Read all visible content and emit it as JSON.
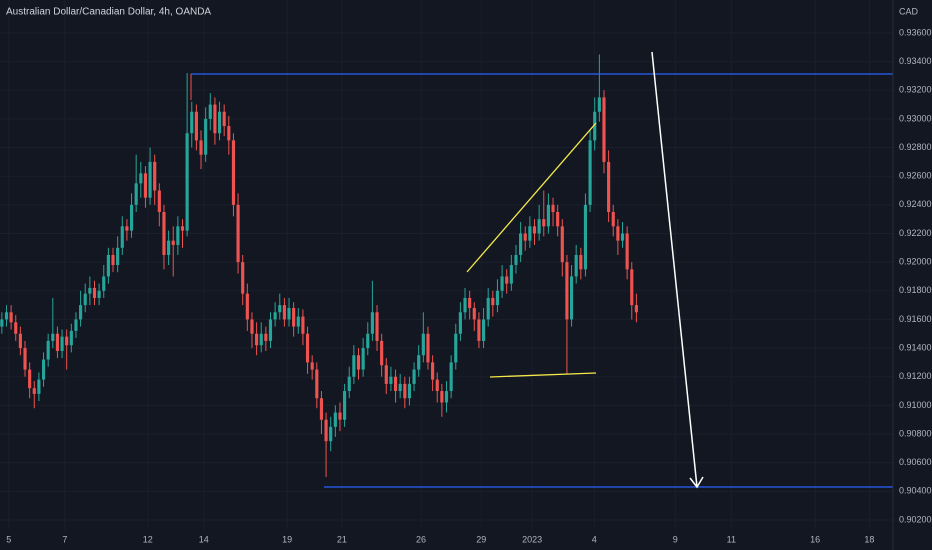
{
  "chart_data": {
    "type": "candlestick",
    "title": "Australian Dollar/Canadian Dollar, 4h, OANDA",
    "y_axis_label": "CAD",
    "up_color": "#26a69a",
    "down_color": "#ef5350",
    "grid": true,
    "grid_color": "#1b1f2b",
    "ylim": [
      0.9013,
      0.9383
    ],
    "yticks": [
      {
        "value": 0.902,
        "label": "0.90200"
      },
      {
        "value": 0.904,
        "label": "0.90400"
      },
      {
        "value": 0.906,
        "label": "0.90600"
      },
      {
        "value": 0.908,
        "label": "0.90800"
      },
      {
        "value": 0.91,
        "label": "0.91000"
      },
      {
        "value": 0.912,
        "label": "0.91200"
      },
      {
        "value": 0.914,
        "label": "0.91400"
      },
      {
        "value": 0.916,
        "label": "0.91600"
      },
      {
        "value": 0.918,
        "label": "0.91800"
      },
      {
        "value": 0.92,
        "label": "0.92000"
      },
      {
        "value": 0.922,
        "label": "0.92200"
      },
      {
        "value": 0.924,
        "label": "0.92400"
      },
      {
        "value": 0.926,
        "label": "0.92600"
      },
      {
        "value": 0.928,
        "label": "0.92800"
      },
      {
        "value": 0.93,
        "label": "0.93000"
      },
      {
        "value": 0.932,
        "label": "0.93200"
      },
      {
        "value": 0.934,
        "label": "0.93400"
      },
      {
        "value": 0.936,
        "label": "0.93600"
      }
    ],
    "xlim": [
      -0.4,
      192.4
    ],
    "xticks": [
      {
        "value": 1.5,
        "label": "5"
      },
      {
        "value": 13.6,
        "label": "7"
      },
      {
        "value": 31.5,
        "label": "12"
      },
      {
        "value": 43.6,
        "label": "14"
      },
      {
        "value": 61.6,
        "label": "19"
      },
      {
        "value": 73.4,
        "label": "21"
      },
      {
        "value": 90.5,
        "label": "26"
      },
      {
        "value": 103.5,
        "label": "29"
      },
      {
        "value": 114.5,
        "label": "2023"
      },
      {
        "value": 127.9,
        "label": "4"
      },
      {
        "value": 145.4,
        "label": "9"
      },
      {
        "value": 157.5,
        "label": "11"
      },
      {
        "value": 175.6,
        "label": "16"
      },
      {
        "value": 187.3,
        "label": "18"
      }
    ],
    "x": [
      0,
      1,
      2,
      3,
      4,
      5,
      6,
      7,
      8,
      9,
      10,
      11,
      12,
      13,
      14,
      15,
      16,
      17,
      18,
      19,
      20,
      21,
      22,
      23,
      24,
      25,
      26,
      27,
      28,
      29,
      30,
      31,
      32,
      33,
      34,
      35,
      36,
      37,
      38,
      39,
      40,
      41,
      42,
      43,
      44,
      45,
      46,
      47,
      48,
      49,
      50,
      51,
      52,
      53,
      54,
      55,
      56,
      57,
      58,
      59,
      60,
      61,
      62,
      63,
      64,
      65,
      66,
      67,
      68,
      69,
      70,
      71,
      72,
      73,
      74,
      75,
      76,
      77,
      78,
      79,
      80,
      81,
      82,
      83,
      84,
      85,
      86,
      87,
      88,
      89,
      90,
      91,
      92,
      93,
      94,
      95,
      96,
      97,
      98,
      99,
      100,
      101,
      102,
      103,
      104,
      105,
      106,
      107,
      108,
      109,
      110,
      111,
      112,
      113,
      114,
      115,
      116,
      117,
      118,
      119,
      120,
      121,
      122,
      123,
      124,
      125,
      126,
      127,
      128,
      129,
      130,
      131,
      132,
      133,
      134,
      135,
      136,
      137
    ],
    "open": [
      0.9155,
      0.916,
      0.9165,
      0.9158,
      0.915,
      0.914,
      0.9125,
      0.9112,
      0.9108,
      0.9118,
      0.9132,
      0.9145,
      0.915,
      0.9138,
      0.9148,
      0.9142,
      0.9152,
      0.916,
      0.917,
      0.9178,
      0.9182,
      0.9175,
      0.918,
      0.919,
      0.9205,
      0.9198,
      0.921,
      0.9225,
      0.9222,
      0.924,
      0.9255,
      0.9262,
      0.9245,
      0.927,
      0.925,
      0.9235,
      0.9205,
      0.9215,
      0.9212,
      0.9225,
      0.9222,
      0.929,
      0.9305,
      0.9285,
      0.9275,
      0.93,
      0.931,
      0.929,
      0.9305,
      0.9295,
      0.9285,
      0.924,
      0.92,
      0.9178,
      0.916,
      0.915,
      0.9142,
      0.915,
      0.9145,
      0.916,
      0.9165,
      0.917,
      0.916,
      0.9168,
      0.9155,
      0.9162,
      0.915,
      0.913,
      0.9125,
      0.9105,
      0.909,
      0.9075,
      0.9085,
      0.9095,
      0.909,
      0.911,
      0.912,
      0.9135,
      0.9125,
      0.914,
      0.915,
      0.9165,
      0.9145,
      0.9128,
      0.9115,
      0.912,
      0.911,
      0.9115,
      0.9105,
      0.9115,
      0.9125,
      0.9135,
      0.915,
      0.913,
      0.9118,
      0.911,
      0.9102,
      0.911,
      0.913,
      0.915,
      0.9165,
      0.9175,
      0.9168,
      0.916,
      0.9145,
      0.916,
      0.9175,
      0.917,
      0.918,
      0.919,
      0.9185,
      0.9198,
      0.9205,
      0.922,
      0.9215,
      0.9225,
      0.922,
      0.923,
      0.9225,
      0.924,
      0.9235,
      0.9225,
      0.92,
      0.916,
      0.919,
      0.9205,
      0.9195,
      0.924,
      0.9285,
      0.9305,
      0.9315,
      0.927,
      0.9235,
      0.9225,
      0.9215,
      0.922,
      0.9195,
      0.917
    ],
    "high": [
      0.9165,
      0.917,
      0.917,
      0.9163,
      0.9155,
      0.9145,
      0.913,
      0.9117,
      0.9123,
      0.9137,
      0.915,
      0.9175,
      0.9155,
      0.9153,
      0.9153,
      0.9157,
      0.9165,
      0.918,
      0.9185,
      0.919,
      0.9187,
      0.9185,
      0.9198,
      0.921,
      0.921,
      0.9218,
      0.9232,
      0.923,
      0.9248,
      0.9275,
      0.927,
      0.9267,
      0.928,
      0.9275,
      0.9255,
      0.924,
      0.9222,
      0.9225,
      0.9232,
      0.923,
      0.9332,
      0.9312,
      0.931,
      0.9292,
      0.9308,
      0.9318,
      0.9315,
      0.9312,
      0.931,
      0.9302,
      0.929,
      0.9248,
      0.9205,
      0.9185,
      0.9165,
      0.9158,
      0.9158,
      0.9155,
      0.9165,
      0.9172,
      0.9178,
      0.9175,
      0.9175,
      0.9172,
      0.9168,
      0.9167,
      0.9155,
      0.9135,
      0.913,
      0.911,
      0.9095,
      0.9092,
      0.91,
      0.9102,
      0.9115,
      0.9127,
      0.9142,
      0.914,
      0.9147,
      0.9158,
      0.9187,
      0.917,
      0.915,
      0.9133,
      0.9127,
      0.9125,
      0.9122,
      0.912,
      0.912,
      0.913,
      0.9142,
      0.9165,
      0.9155,
      0.9135,
      0.9123,
      0.9115,
      0.9117,
      0.9135,
      0.9157,
      0.9172,
      0.9182,
      0.918,
      0.9172,
      0.9165,
      0.9168,
      0.9182,
      0.918,
      0.9188,
      0.9198,
      0.9195,
      0.9205,
      0.9212,
      0.9228,
      0.9225,
      0.9232,
      0.923,
      0.924,
      0.925,
      0.9248,
      0.9245,
      0.924,
      0.923,
      0.9205,
      0.9198,
      0.9212,
      0.921,
      0.9248,
      0.9292,
      0.9315,
      0.9345,
      0.932,
      0.9278,
      0.924,
      0.923,
      0.9228,
      0.9225,
      0.92,
      0.9178
    ],
    "low": [
      0.915,
      0.9155,
      0.9153,
      0.9145,
      0.9135,
      0.912,
      0.9105,
      0.9098,
      0.9103,
      0.9113,
      0.9127,
      0.914,
      0.9133,
      0.9133,
      0.9125,
      0.9137,
      0.9147,
      0.9155,
      0.9165,
      0.917,
      0.917,
      0.917,
      0.9175,
      0.9185,
      0.9193,
      0.9193,
      0.9205,
      0.9215,
      0.9217,
      0.9235,
      0.9245,
      0.9238,
      0.924,
      0.924,
      0.9225,
      0.9195,
      0.9198,
      0.919,
      0.9205,
      0.921,
      0.9218,
      0.928,
      0.9278,
      0.9265,
      0.927,
      0.9292,
      0.9282,
      0.9285,
      0.9288,
      0.9275,
      0.9232,
      0.9192,
      0.917,
      0.9152,
      0.914,
      0.9135,
      0.9137,
      0.9138,
      0.914,
      0.9155,
      0.916,
      0.9155,
      0.9155,
      0.9148,
      0.915,
      0.9142,
      0.9122,
      0.9118,
      0.9098,
      0.908,
      0.905,
      0.9068,
      0.9078,
      0.9082,
      0.9085,
      0.9105,
      0.9115,
      0.9118,
      0.912,
      0.9135,
      0.9145,
      0.9138,
      0.912,
      0.9108,
      0.911,
      0.9102,
      0.9105,
      0.9098,
      0.91,
      0.911,
      0.912,
      0.913,
      0.9125,
      0.911,
      0.9102,
      0.9092,
      0.9095,
      0.9105,
      0.9125,
      0.9145,
      0.916,
      0.916,
      0.9152,
      0.914,
      0.914,
      0.9155,
      0.9162,
      0.9165,
      0.9175,
      0.9178,
      0.918,
      0.9192,
      0.92,
      0.9208,
      0.921,
      0.9212,
      0.9215,
      0.9218,
      0.922,
      0.9225,
      0.9218,
      0.919,
      0.9122,
      0.9155,
      0.9185,
      0.9188,
      0.919,
      0.9235,
      0.9278,
      0.9298,
      0.9262,
      0.9228,
      0.9218,
      0.9205,
      0.921,
      0.9188,
      0.916,
      0.9158
    ],
    "close": [
      0.916,
      0.9165,
      0.9158,
      0.915,
      0.914,
      0.9125,
      0.9112,
      0.9108,
      0.9118,
      0.9132,
      0.9145,
      0.915,
      0.9138,
      0.9148,
      0.9142,
      0.9152,
      0.916,
      0.917,
      0.9178,
      0.9182,
      0.9175,
      0.918,
      0.919,
      0.9205,
      0.9198,
      0.921,
      0.9225,
      0.9222,
      0.924,
      0.9255,
      0.9262,
      0.9245,
      0.927,
      0.925,
      0.9235,
      0.9205,
      0.9215,
      0.9212,
      0.9225,
      0.9222,
      0.929,
      0.9305,
      0.9285,
      0.9275,
      0.93,
      0.931,
      0.929,
      0.9305,
      0.9295,
      0.9285,
      0.924,
      0.92,
      0.9178,
      0.916,
      0.915,
      0.9142,
      0.915,
      0.9145,
      0.916,
      0.9165,
      0.917,
      0.916,
      0.9168,
      0.9155,
      0.9162,
      0.915,
      0.913,
      0.9125,
      0.9105,
      0.909,
      0.9075,
      0.9085,
      0.9095,
      0.909,
      0.911,
      0.912,
      0.9135,
      0.9125,
      0.914,
      0.915,
      0.9165,
      0.9145,
      0.9128,
      0.9115,
      0.912,
      0.911,
      0.9115,
      0.9105,
      0.9115,
      0.9125,
      0.9135,
      0.915,
      0.913,
      0.9118,
      0.911,
      0.9102,
      0.911,
      0.913,
      0.915,
      0.9165,
      0.9175,
      0.9168,
      0.916,
      0.9145,
      0.916,
      0.9175,
      0.917,
      0.918,
      0.919,
      0.9185,
      0.9198,
      0.9205,
      0.922,
      0.9215,
      0.9225,
      0.922,
      0.923,
      0.9225,
      0.924,
      0.9235,
      0.9225,
      0.92,
      0.916,
      0.919,
      0.9205,
      0.9195,
      0.924,
      0.9285,
      0.9305,
      0.9315,
      0.927,
      0.9235,
      0.9225,
      0.9215,
      0.922,
      0.9195,
      0.917,
      0.9165
    ]
  }
}
